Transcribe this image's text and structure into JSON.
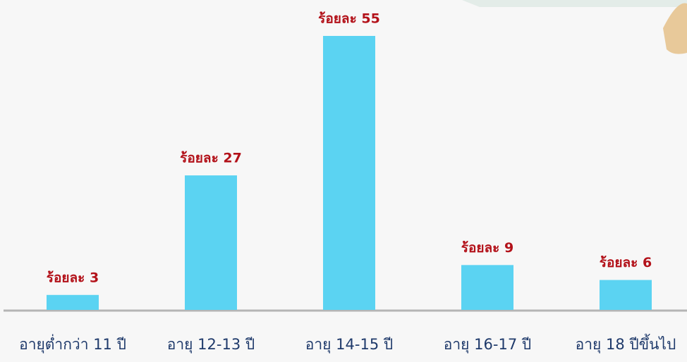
{
  "chart_data": {
    "type": "bar",
    "categories": [
      "อายุต่ำกว่า 11 ปี",
      "อายุ 12-13 ปี",
      "อายุ 14-15 ปี",
      "อายุ 16-17 ปี",
      "อายุ 18 ปีขึ้นไป"
    ],
    "values": [
      3,
      27,
      55,
      9,
      6
    ],
    "value_labels": [
      "ร้อยละ 3",
      "ร้อยละ 27",
      "ร้อยละ 55",
      "ร้อยละ 9",
      "ร้อยละ 6"
    ],
    "color": "#5bd3f2"
  }
}
